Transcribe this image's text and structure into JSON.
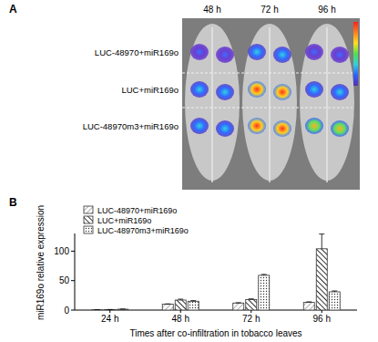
{
  "figure": {
    "panel_a_label": "A",
    "panel_b_label": "B",
    "times": [
      "48 h",
      "72 h",
      "96 h"
    ],
    "rows": [
      "LUC-48970+miR169o",
      "LUC+miR169o",
      "LUC-48970m3+miR169o"
    ]
  },
  "chart_data": {
    "type": "bar",
    "y_label": "miR169o relative expression",
    "x_label": "Times after co-infiltration in tobacco leaves",
    "categories": [
      "24 h",
      "48 h",
      "72 h",
      "96 h"
    ],
    "series": [
      {
        "name": "LUC-48970+miR169o",
        "color": "#333333",
        "values": [
          0.5,
          10,
          12,
          13
        ],
        "errors": [
          0.2,
          0.5,
          0.5,
          1
        ]
      },
      {
        "name": "LUC+miR169o",
        "color": "#333333",
        "values": [
          0.8,
          17,
          18,
          104
        ],
        "errors": [
          0.2,
          1.5,
          1,
          25
        ]
      },
      {
        "name": "LUC-48970m3+miR169o",
        "color": "#333333",
        "values": [
          1.5,
          15,
          59,
          31
        ],
        "errors": [
          0.3,
          1,
          1.5,
          1.5
        ]
      }
    ],
    "ylim": [
      0,
      130
    ],
    "yticks": [
      0,
      50,
      100
    ],
    "legend": "upper left",
    "grid": false
  }
}
